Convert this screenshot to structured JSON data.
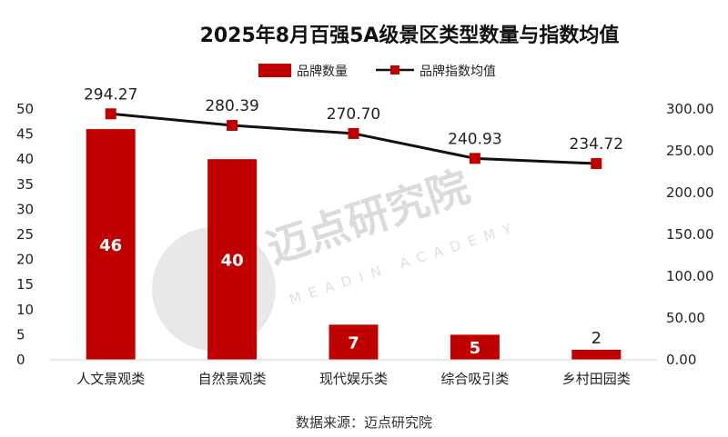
{
  "chart_data": {
    "type": "bar+line",
    "title": "2025年8月百强5A级景区类型数量与指数均值",
    "categories": [
      "人文景观类",
      "自然景观类",
      "现代娱乐类",
      "综合吸引类",
      "乡村田园类"
    ],
    "series": [
      {
        "name": "品牌数量",
        "type": "bar",
        "axis": "left",
        "values": [
          46,
          40,
          7,
          5,
          2
        ],
        "labels": [
          "46",
          "40",
          "7",
          "5",
          "2"
        ],
        "color": "#c00000"
      },
      {
        "name": "品牌指数均值",
        "type": "line",
        "axis": "right",
        "values": [
          294.27,
          280.39,
          270.7,
          240.93,
          234.72
        ],
        "labels": [
          "294.27",
          "280.39",
          "270.70",
          "240.93",
          "234.72"
        ],
        "line_color": "#111111",
        "marker_color": "#c00000"
      }
    ],
    "y_left": {
      "min": 0,
      "max": 50,
      "ticks": [
        "0",
        "5",
        "10",
        "15",
        "20",
        "25",
        "30",
        "35",
        "40",
        "45",
        "50"
      ]
    },
    "y_right": {
      "min": 0,
      "max": 300,
      "ticks": [
        "0.00",
        "50.00",
        "100.00",
        "150.00",
        "200.00",
        "250.00",
        "300.00"
      ]
    },
    "legend_position": "top-center",
    "grid": false
  },
  "source_text": "数据来源：迈点研究院",
  "watermark": {
    "text": "迈点研究院",
    "subtext": "MEADIN ACADEMY",
    "color": "#d8d8d8"
  }
}
